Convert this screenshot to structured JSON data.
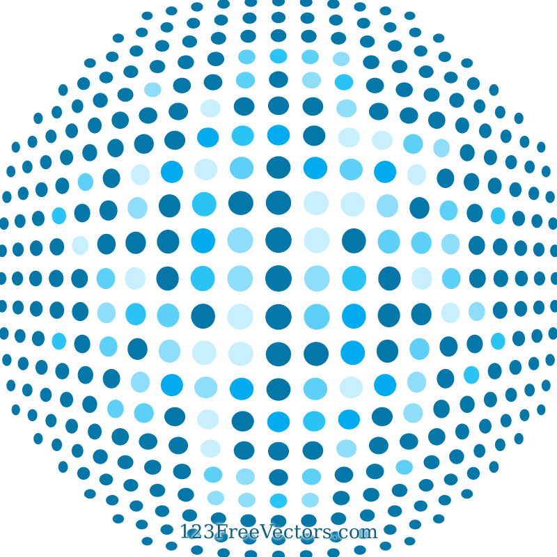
{
  "artwork": {
    "subject": "halftone dot sphere",
    "palette": [
      "#0377a8",
      "#00acef",
      "#29c4f5",
      "#5dd0f7",
      "#8dddfb",
      "#c7efff"
    ],
    "background": "#ffffff"
  },
  "watermark": {
    "text": "123FreeVectors.com",
    "color": "#0b5f82"
  }
}
